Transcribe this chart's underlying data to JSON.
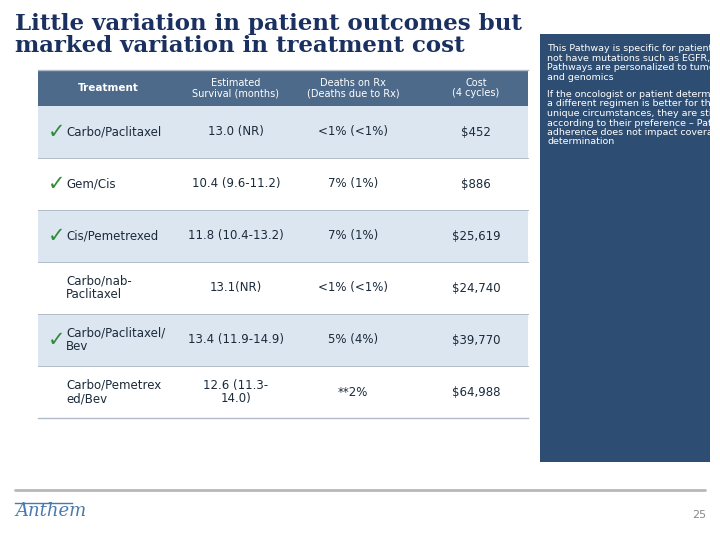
{
  "title_line1": "Little variation in patient outcomes but",
  "title_line2": "marked variation in treatment cost",
  "title_color": "#1a3060",
  "bg_color": "#ffffff",
  "table_header_bg": "#4d6a8a",
  "col_headers": [
    "Treatment",
    "Estimated\nSurvival (months)",
    "Deaths on Rx\n(Deaths due to Rx)",
    "Cost\n(4 cycles)"
  ],
  "rows": [
    {
      "treatment": "Carbo/Paclitaxel",
      "survival": "13.0 (NR)",
      "deaths": "<1% (<1%)",
      "cost": "$452",
      "check": true,
      "two_line": false
    },
    {
      "treatment": "Gem/Cis",
      "survival": "10.4 (9.6-11.2)",
      "deaths": "7% (1%)",
      "cost": "$886",
      "check": true,
      "two_line": false
    },
    {
      "treatment": "Cis/Pemetrexed",
      "survival": "11.8 (10.4-13.2)",
      "deaths": "7% (1%)",
      "cost": "$25,619",
      "check": true,
      "two_line": false
    },
    {
      "treatment": "Carbo/nab-\nPaclitaxel",
      "survival": "13.1(NR)",
      "deaths": "<1% (<1%)",
      "cost": "$24,740",
      "check": false,
      "two_line": true
    },
    {
      "treatment": "Carbo/Paclitaxel/\nBev",
      "survival": "13.4 (11.9-14.9)",
      "deaths": "5% (4%)",
      "cost": "$39,770",
      "check": true,
      "two_line": true
    },
    {
      "treatment": "Carbo/Pemetrex\ned/Bev",
      "survival": "12.6 (11.3-\n14.0)",
      "deaths": "**2%",
      "cost": "$64,988",
      "check": false,
      "two_line": true
    }
  ],
  "sidebar_bg": "#2e4d72",
  "sidebar_text1": "This Pathway is specific for patients who do not have mutations such as EGFR, ALK – Pathways are personalized to tumor biology and genomics",
  "sidebar_text2": "If the oncologist or patient determines that a different regimen is better for their unique circumstances, they are still treated according to their preference – Pathway adherence does not impact coverage determination",
  "sidebar_text_color": "#ffffff",
  "check_color": "#2e8b3a",
  "footer_text": "Anthem",
  "footer_color": "#4a7aad",
  "page_number": "25",
  "row_bg_even": "#dce6f0",
  "row_bg_odd": "#ffffff",
  "line_color": "#b0bcc8",
  "text_color": "#1a2a3a"
}
